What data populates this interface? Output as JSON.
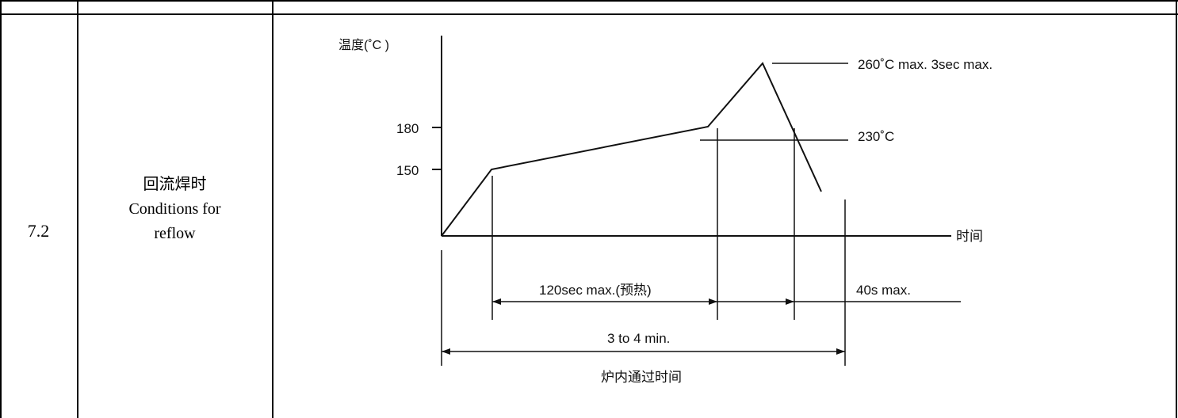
{
  "row": {
    "item_no": "7.2",
    "condition_cn": "回流焊时",
    "condition_en_line1": "Conditions for",
    "condition_en_line2": "reflow"
  },
  "profile": {
    "y_axis_label": "温度(˚C )",
    "x_axis_label": "时间",
    "y_ticks": [
      "180",
      "150"
    ],
    "peak_label": "260˚C max. 3sec max.",
    "threshold_label": "230˚C",
    "preheat_label": "120sec max.(预热)",
    "above_threshold_label": "40s max.",
    "total_label": "3 to 4 min.",
    "total_caption": "炉内通过时间"
  },
  "chart_data": {
    "type": "line",
    "title": "",
    "xlabel": "时间",
    "ylabel": "温度(˚C )",
    "y_ticks": [
      180,
      150
    ],
    "series": [
      {
        "points_description_free": true,
        "stages": [
          "ramp",
          "preheat 150 to 180",
          "ramp to peak",
          "peak 260",
          "cool down"
        ],
        "y": [
          0,
          150,
          180,
          260,
          null
        ]
      }
    ],
    "annotations": [
      "260˚C max. 3sec max.",
      "230˚C",
      "120sec max.(预热)",
      "40s max.",
      "3 to 4 min.",
      "炉内通过时间"
    ],
    "colors": {
      "line": "#000000"
    }
  }
}
